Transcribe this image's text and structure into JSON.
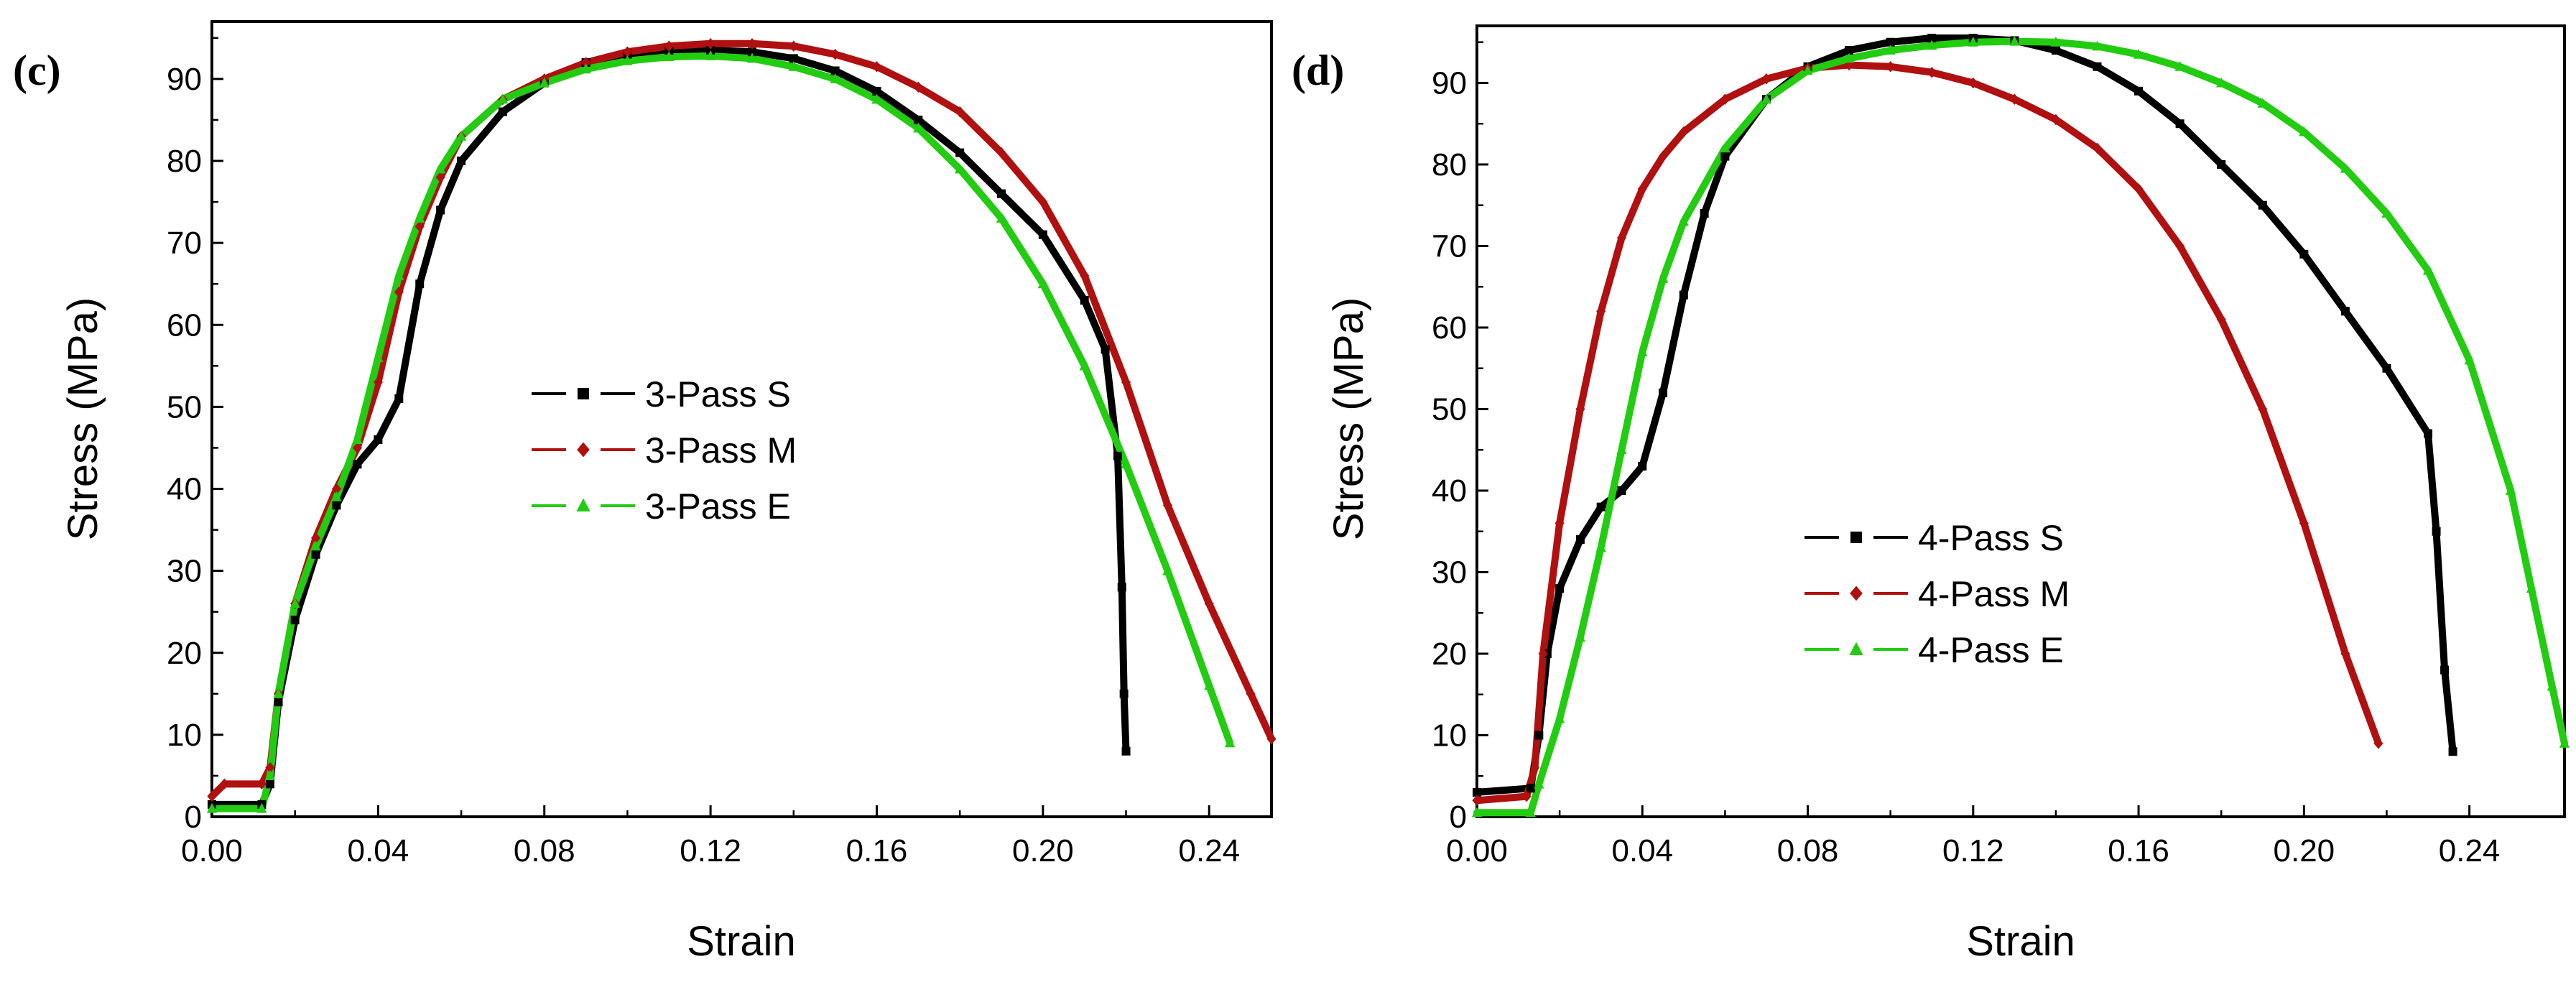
{
  "figure_colors": {
    "S": "#000000",
    "M": "#b01010",
    "E": "#22cc11"
  },
  "chart_data": [
    {
      "type": "line",
      "panel_label": "(c)",
      "xlabel": "Strain",
      "ylabel": "Stress (MPa)",
      "xlim": [
        0,
        0.255
      ],
      "ylim": [
        0,
        97
      ],
      "xticks": [
        "0.00",
        "0.04",
        "0.08",
        "0.12",
        "0.16",
        "0.20",
        "0.24"
      ],
      "xtick_values": [
        0,
        0.04,
        0.08,
        0.12,
        0.16,
        0.2,
        0.24
      ],
      "yticks": [
        "0",
        "10",
        "20",
        "30",
        "40",
        "50",
        "60",
        "70",
        "80",
        "90"
      ],
      "ytick_values": [
        0,
        10,
        20,
        30,
        40,
        50,
        60,
        70,
        80,
        90
      ],
      "legend_position": "center",
      "series": [
        {
          "name": "3-Pass S",
          "color_key": "S",
          "marker": "square",
          "x": [
            0,
            0.012,
            0.014,
            0.016,
            0.02,
            0.025,
            0.03,
            0.035,
            0.04,
            0.045,
            0.05,
            0.055,
            0.06,
            0.07,
            0.08,
            0.09,
            0.1,
            0.11,
            0.12,
            0.13,
            0.14,
            0.15,
            0.16,
            0.17,
            0.18,
            0.19,
            0.2,
            0.21,
            0.215,
            0.218,
            0.219,
            0.2195,
            0.22
          ],
          "values": [
            1.5,
            1.5,
            4,
            14,
            24,
            32,
            38,
            43,
            46,
            51,
            65,
            74,
            80,
            86,
            89.5,
            92,
            93,
            93.5,
            93.5,
            93.3,
            92.5,
            91,
            88.5,
            85,
            81,
            76,
            71,
            63,
            57,
            44,
            28,
            15,
            8
          ]
        },
        {
          "name": "3-Pass M",
          "color_key": "M",
          "marker": "diamond",
          "x": [
            0,
            0.003,
            0.012,
            0.014,
            0.016,
            0.02,
            0.025,
            0.03,
            0.035,
            0.04,
            0.045,
            0.05,
            0.055,
            0.06,
            0.07,
            0.08,
            0.09,
            0.1,
            0.11,
            0.12,
            0.13,
            0.14,
            0.15,
            0.16,
            0.17,
            0.18,
            0.19,
            0.2,
            0.21,
            0.22,
            0.23,
            0.24,
            0.25,
            0.255
          ],
          "values": [
            2.5,
            4,
            4,
            6,
            15,
            26,
            34,
            40,
            45,
            53,
            64,
            72,
            78,
            83,
            87.5,
            90,
            92,
            93.3,
            94,
            94.3,
            94.3,
            94,
            93,
            91.5,
            89,
            86,
            81,
            75,
            66,
            53,
            38,
            26,
            15,
            9.5
          ]
        },
        {
          "name": "3-Pass E",
          "color_key": "E",
          "marker": "triangle",
          "x": [
            0,
            0.012,
            0.014,
            0.016,
            0.02,
            0.025,
            0.03,
            0.035,
            0.04,
            0.045,
            0.05,
            0.055,
            0.06,
            0.07,
            0.08,
            0.09,
            0.1,
            0.11,
            0.12,
            0.13,
            0.14,
            0.15,
            0.16,
            0.17,
            0.18,
            0.19,
            0.2,
            0.21,
            0.22,
            0.23,
            0.24,
            0.245
          ],
          "values": [
            1,
            1,
            5,
            15,
            26,
            33,
            39,
            46,
            56,
            66,
            73,
            79,
            83,
            87.5,
            89.5,
            91.2,
            92.2,
            92.7,
            92.8,
            92.5,
            91.5,
            90,
            87.5,
            84,
            79,
            73,
            65,
            55,
            43,
            30,
            16,
            9
          ]
        }
      ]
    },
    {
      "type": "line",
      "panel_label": "(d)",
      "xlabel": "Strain",
      "ylabel": "Stress (MPa)",
      "xlim": [
        0,
        0.263
      ],
      "ylim": [
        0,
        97
      ],
      "xticks": [
        "0.00",
        "0.04",
        "0.08",
        "0.12",
        "0.16",
        "0.20",
        "0.24"
      ],
      "xtick_values": [
        0,
        0.04,
        0.08,
        0.12,
        0.16,
        0.2,
        0.24
      ],
      "yticks": [
        "0",
        "10",
        "20",
        "30",
        "40",
        "50",
        "60",
        "70",
        "80",
        "90"
      ],
      "ytick_values": [
        0,
        10,
        20,
        30,
        40,
        50,
        60,
        70,
        80,
        90
      ],
      "legend_position": "lower-center",
      "series": [
        {
          "name": "4-Pass S",
          "color_key": "S",
          "marker": "square",
          "x": [
            0,
            0.013,
            0.015,
            0.017,
            0.02,
            0.025,
            0.03,
            0.035,
            0.04,
            0.045,
            0.05,
            0.055,
            0.06,
            0.07,
            0.08,
            0.09,
            0.1,
            0.11,
            0.12,
            0.13,
            0.14,
            0.15,
            0.16,
            0.17,
            0.18,
            0.19,
            0.2,
            0.21,
            0.22,
            0.23,
            0.232,
            0.234,
            0.236
          ],
          "values": [
            3,
            3.5,
            10,
            20,
            28,
            34,
            38,
            40,
            43,
            52,
            64,
            74,
            81,
            88,
            92,
            94,
            95,
            95.5,
            95.5,
            95.2,
            94,
            92,
            89,
            85,
            80,
            75,
            69,
            62,
            55,
            47,
            35,
            18,
            8
          ]
        },
        {
          "name": "4-Pass M",
          "color_key": "M",
          "marker": "diamond",
          "x": [
            0,
            0.012,
            0.014,
            0.016,
            0.02,
            0.025,
            0.03,
            0.035,
            0.04,
            0.045,
            0.05,
            0.06,
            0.07,
            0.08,
            0.09,
            0.1,
            0.11,
            0.12,
            0.13,
            0.14,
            0.15,
            0.16,
            0.17,
            0.18,
            0.19,
            0.2,
            0.21,
            0.218
          ],
          "values": [
            2,
            2.5,
            6,
            20,
            36,
            50,
            62,
            71,
            77,
            81,
            84,
            88,
            90.5,
            91.8,
            92.2,
            92,
            91.3,
            90,
            88,
            85.5,
            82,
            77,
            70,
            61,
            50,
            36,
            20,
            9
          ]
        },
        {
          "name": "4-Pass E",
          "color_key": "E",
          "marker": "triangle",
          "x": [
            0,
            0.013,
            0.015,
            0.02,
            0.025,
            0.03,
            0.035,
            0.04,
            0.045,
            0.05,
            0.06,
            0.07,
            0.08,
            0.09,
            0.1,
            0.11,
            0.12,
            0.13,
            0.14,
            0.15,
            0.16,
            0.17,
            0.18,
            0.19,
            0.2,
            0.21,
            0.22,
            0.23,
            0.24,
            0.25,
            0.255,
            0.26,
            0.263
          ],
          "values": [
            0.5,
            0.5,
            4,
            12,
            22,
            33,
            45,
            57,
            66,
            73,
            82,
            88,
            91.5,
            93,
            94,
            94.6,
            95,
            95.1,
            95,
            94.5,
            93.5,
            92,
            90,
            87.5,
            84,
            79.5,
            74,
            67,
            56,
            40,
            28,
            16,
            9
          ]
        }
      ]
    }
  ]
}
